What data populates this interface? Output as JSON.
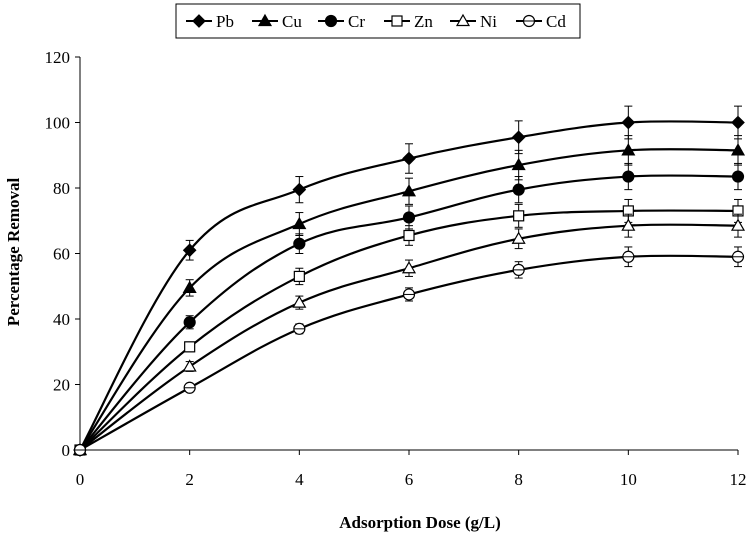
{
  "chart_data": {
    "type": "line",
    "title": "",
    "xlabel": "Adsorption Dose (g/L)",
    "ylabel": "Percentage Removal",
    "xlim": [
      0,
      12
    ],
    "ylim": [
      0,
      120
    ],
    "xticks": [
      "0",
      "2",
      "4",
      "6",
      "8",
      "10",
      "12"
    ],
    "yticks": [
      "0",
      "20",
      "40",
      "60",
      "80",
      "100",
      "120"
    ],
    "grid": false,
    "legend_position": "top",
    "x": [
      0,
      2,
      4,
      6,
      8,
      10,
      12
    ],
    "series": [
      {
        "name": "Pb",
        "marker": "diamond-filled",
        "values": [
          0,
          61,
          79.5,
          89,
          95.5,
          100,
          100
        ],
        "errors": [
          0,
          3,
          4,
          4.5,
          5,
          5,
          5
        ]
      },
      {
        "name": "Cu",
        "marker": "triangle-filled",
        "values": [
          0,
          49.5,
          69,
          79,
          87,
          91.5,
          91.5
        ],
        "errors": [
          0,
          2.5,
          3.5,
          4,
          4.5,
          4.5,
          4.5
        ]
      },
      {
        "name": "Cr",
        "marker": "circle-filled",
        "values": [
          0,
          39,
          63,
          71,
          79.5,
          83.5,
          83.5
        ],
        "errors": [
          0,
          2,
          3,
          3.5,
          4,
          4,
          4
        ]
      },
      {
        "name": "Zn",
        "marker": "square-open",
        "values": [
          0,
          31.5,
          53,
          65.5,
          71.5,
          73,
          73
        ],
        "errors": [
          0,
          1.5,
          2.5,
          3,
          3.5,
          3.5,
          3.5
        ]
      },
      {
        "name": "Ni",
        "marker": "triangle-open",
        "values": [
          0,
          25.5,
          45,
          55.5,
          64.5,
          68.5,
          68.5
        ],
        "errors": [
          0,
          1.5,
          2,
          2.5,
          3,
          3.5,
          3.5
        ]
      },
      {
        "name": "Cd",
        "marker": "circle-open",
        "values": [
          0,
          19,
          37,
          47.5,
          55,
          59,
          59
        ],
        "errors": [
          0,
          1,
          1.5,
          2,
          2.5,
          3,
          3
        ]
      }
    ]
  }
}
